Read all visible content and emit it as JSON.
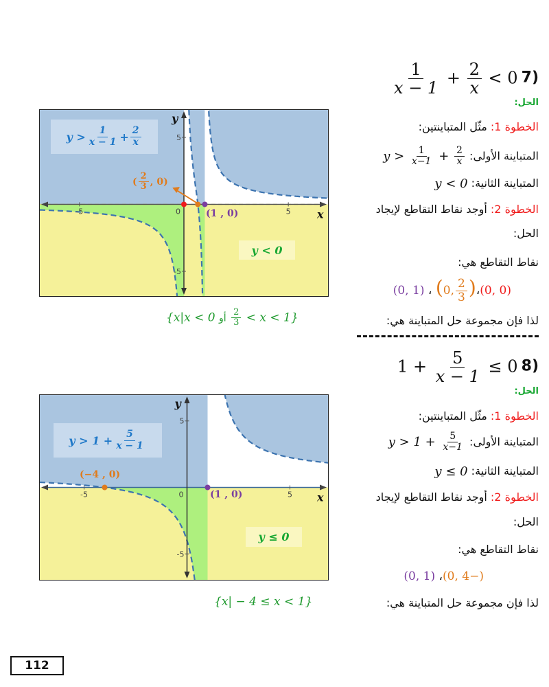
{
  "colors": {
    "heading_green": "#1aa834",
    "step_red": "#f01c1c",
    "point_orange": "#e07b1c",
    "point_purple": "#7a3ea0",
    "point_red": "#f01c1c",
    "region_blue": "#aac5e0",
    "region_yellow": "#f5f199",
    "region_green": "#aef07e",
    "curve": "#3d74b0"
  },
  "problems": [
    {
      "number": "(7",
      "inequality": {
        "f1_num": "1",
        "f1_den": "x − 1",
        "op": "+",
        "f2_num": "2",
        "f2_den": "x",
        "rel": "< 0"
      },
      "solution_label": "الحل:",
      "step1_label": "الخطوة 1:",
      "step1_text": "مثّل المتباينتين:",
      "first_ineq_label": "المتباينة الأولى:",
      "first_ineq": {
        "lhs": "y >",
        "f1_num": "1",
        "f1_den": "x−1",
        "op": "+",
        "f2_num": "2",
        "f2_den": "x"
      },
      "second_ineq_label": "المتباينة الثانية:",
      "second_ineq": "y < 0",
      "step2_label": "الخطوة 2:",
      "step2_text": "أوجد نقاط التقاطع لإيجاد",
      "step2_cont": "الحل:",
      "intersections_label": "نقاط التقاطع هي:",
      "intersections": {
        "p1": "(0 ,0)",
        "sep1": "،",
        "p2_num": "2",
        "p2_den": "3",
        "p2_rest": ",0",
        "sep2": "،",
        "p3": "(1 ,0)"
      },
      "conclusion_label": "لذا فإن مجموعة حل المتباينة هي:",
      "solution_set": {
        "open": "{x|x < 0",
        "or": "أو",
        "mid_num": "2",
        "mid_den": "3",
        "close": "< x < 1}"
      },
      "graph": {
        "legend_top": {
          "lhs": "y >",
          "f1_num": "1",
          "f1_den": "x − 1",
          "op": "+",
          "f2_num": "2",
          "f2_den": "x"
        },
        "legend_bottom": "y < 0",
        "axis_x": "x",
        "axis_y": "y",
        "ticks": {
          "x_neg": "-5",
          "x_pos": "5",
          "y_pos": "5",
          "y_neg": "-5",
          "origin": "0"
        },
        "point_labels": {
          "orange_num": "2",
          "orange_den": "3",
          "orange_rest": ", 0)",
          "orange_open": "(",
          "purple": "(1 , 0)"
        },
        "points": [
          {
            "x": 0,
            "y": 0,
            "color": "red"
          },
          {
            "x": 0.6667,
            "y": 0,
            "color": "orange"
          },
          {
            "x": 1,
            "y": 0,
            "color": "purple"
          }
        ],
        "xlim": [
          -6.9,
          6.9
        ],
        "ylim": [
          -6.85,
          7.05
        ]
      }
    },
    {
      "number": "(8",
      "inequality": {
        "lhs": "1 +",
        "f_num": "5",
        "f_den": "x − 1",
        "rel": "≤ 0"
      },
      "solution_label": "الحل:",
      "step1_label": "الخطوة 1:",
      "step1_text": "مثّل المتباينتين:",
      "first_ineq_label": "المتباينة الأولى:",
      "first_ineq": {
        "lhs": "y > 1 +",
        "f_num": "5",
        "f_den": "x−1"
      },
      "second_ineq_label": "المتباينة الثانية:",
      "second_ineq": "y ≤ 0",
      "step2_label": "الخطوة 2:",
      "step2_text": "أوجد نقاط التقاطع لإيجاد",
      "step2_cont": "الحل:",
      "intersections_label": "نقاط التقاطع هي:",
      "intersections": {
        "p1": "(−4 ,0)",
        "sep1": "،",
        "p2": "(1 ,0)"
      },
      "conclusion_label": "لذا فإن مجموعة حل المتباينة هي:",
      "solution_set": "{x| − 4 ≤ x < 1}",
      "graph": {
        "legend_top": {
          "lhs": "y > 1 +",
          "f_num": "5",
          "f_den": "x − 1"
        },
        "legend_bottom": "y ≤ 0",
        "axis_x": "x",
        "axis_y": "y",
        "ticks": {
          "x_neg": "-5",
          "x_pos": "5",
          "y_pos": "5",
          "y_neg": "-5",
          "origin": "0"
        },
        "point_labels": {
          "orange": "(−4 , 0)",
          "purple": "(1 , 0)"
        },
        "points": [
          {
            "x": -4,
            "y": 0,
            "color": "orange"
          },
          {
            "x": 1,
            "y": 0,
            "color": "purple"
          }
        ],
        "xlim": [
          -7.15,
          6.85
        ],
        "ylim": [
          -6.95,
          6.95
        ]
      }
    }
  ],
  "page_number": "112"
}
